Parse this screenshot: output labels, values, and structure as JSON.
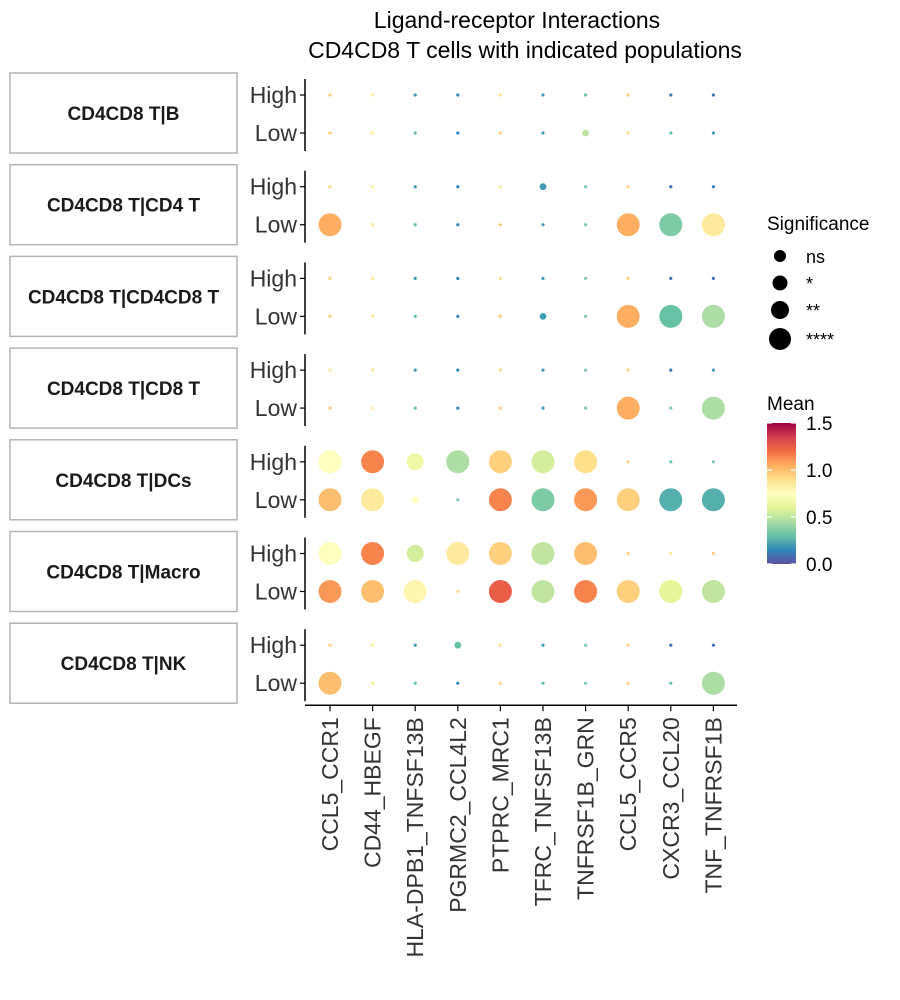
{
  "chart_data": {
    "type": "scatter",
    "title": "Ligand-receptor Interactions",
    "subtitle": "CD4CD8 T cells with indicated populations",
    "xlabel": "",
    "ylabel": "",
    "categories": [
      "CCL5_CCR1",
      "CD44_HBEGF",
      "HLA-DPB1_TNFSF13B",
      "PGRMC2_CCL4L2",
      "PTPRC_MRC1",
      "TFRC_TNFSF13B",
      "TNFRSF1B_GRN",
      "CCL5_CCR5",
      "CXCR3_CCL20",
      "TNF_TNFRSF1B"
    ],
    "row_levels": [
      "High",
      "Low"
    ],
    "color_scale": {
      "name": "Mean",
      "palette": "Spectral",
      "range": [
        0,
        1.5
      ],
      "ticks": [
        "1.5",
        "1.0",
        "0.5",
        "0.0"
      ],
      "stops": [
        "#5E4FA2",
        "#3288BD",
        "#66C2A5",
        "#ABDDA4",
        "#E6F598",
        "#FFFFBF",
        "#FEE08B",
        "#FDAE61",
        "#F46D43",
        "#D53E4F",
        "#9E0142"
      ]
    },
    "size_legend": {
      "name": "Significance",
      "levels": [
        "ns",
        "*",
        "**",
        "****"
      ]
    },
    "grid": false,
    "legend_position": "right",
    "panels": [
      {
        "name": "CD4CD8 T|B",
        "rows": [
          {
            "level": "High",
            "mean": [
              0.95,
              0.85,
              0.2,
              0.15,
              0.9,
              0.2,
              0.3,
              0.95,
              0.1,
              0.1
            ],
            "sig": [
              0,
              0,
              0,
              0,
              0,
              0,
              0,
              0,
              0,
              0
            ]
          },
          {
            "level": "Low",
            "mean": [
              0.95,
              0.85,
              0.3,
              0.15,
              0.95,
              0.2,
              0.5,
              0.9,
              0.3,
              0.2
            ],
            "sig": [
              0,
              0,
              0,
              0,
              0,
              0,
              1,
              0,
              0,
              0
            ]
          }
        ]
      },
      {
        "name": "CD4CD8 T|CD4 T",
        "rows": [
          {
            "level": "High",
            "mean": [
              0.9,
              0.85,
              0.2,
              0.15,
              0.85,
              0.2,
              0.35,
              0.95,
              0.1,
              0.15
            ],
            "sig": [
              0,
              0,
              0,
              0,
              0,
              1,
              0,
              0,
              0,
              0
            ]
          },
          {
            "level": "Low",
            "mean": [
              1.05,
              0.85,
              0.3,
              0.15,
              0.95,
              0.2,
              0.35,
              1.05,
              0.35,
              0.85
            ],
            "sig": [
              3,
              0,
              0,
              0,
              0,
              0,
              0,
              3,
              3,
              3
            ]
          }
        ]
      },
      {
        "name": "CD4CD8 T|CD4CD8 T",
        "rows": [
          {
            "level": "High",
            "mean": [
              0.95,
              0.85,
              0.2,
              0.15,
              0.9,
              0.2,
              0.35,
              0.95,
              0.1,
              0.1
            ],
            "sig": [
              0,
              0,
              0,
              0,
              0,
              0,
              0,
              0,
              0,
              0
            ]
          },
          {
            "level": "Low",
            "mean": [
              0.95,
              0.85,
              0.3,
              0.15,
              0.95,
              0.2,
              0.35,
              1.05,
              0.3,
              0.45
            ],
            "sig": [
              0,
              0,
              0,
              0,
              0,
              1,
              0,
              3,
              3,
              3
            ]
          }
        ]
      },
      {
        "name": "CD4CD8 T|CD8 T",
        "rows": [
          {
            "level": "High",
            "mean": [
              0.85,
              0.85,
              0.2,
              0.15,
              0.9,
              0.2,
              0.35,
              0.95,
              0.1,
              0.2
            ],
            "sig": [
              0,
              0,
              0,
              0,
              0,
              0,
              0,
              0,
              0,
              0
            ]
          },
          {
            "level": "Low",
            "mean": [
              0.95,
              0.85,
              0.3,
              0.15,
              0.95,
              0.2,
              0.35,
              1.05,
              0.35,
              0.45
            ],
            "sig": [
              0,
              0,
              0,
              0,
              0,
              0,
              0,
              3,
              0,
              3
            ]
          }
        ]
      },
      {
        "name": "CD4CD8 T|DCs",
        "rows": [
          {
            "level": "High",
            "mean": [
              0.75,
              1.15,
              0.65,
              0.45,
              0.95,
              0.55,
              0.9,
              0.95,
              0.3,
              0.35
            ],
            "sig": [
              3,
              3,
              2,
              3,
              3,
              3,
              3,
              0,
              0,
              0
            ]
          },
          {
            "level": "Low",
            "mean": [
              1.0,
              0.85,
              0.75,
              0.35,
              1.15,
              0.35,
              1.1,
              0.95,
              0.25,
              0.25
            ],
            "sig": [
              3,
              3,
              1,
              0,
              3,
              3,
              3,
              3,
              3,
              3
            ]
          }
        ]
      },
      {
        "name": "CD4CD8 T|Macro",
        "rows": [
          {
            "level": "High",
            "mean": [
              0.75,
              1.15,
              0.55,
              0.85,
              0.95,
              0.5,
              1.0,
              0.95,
              0.85,
              0.95
            ],
            "sig": [
              3,
              3,
              2,
              3,
              3,
              3,
              3,
              0,
              0,
              0
            ]
          },
          {
            "level": "Low",
            "mean": [
              1.1,
              1.0,
              0.8,
              0.9,
              1.25,
              0.5,
              1.15,
              0.95,
              0.6,
              0.5
            ],
            "sig": [
              3,
              3,
              3,
              0,
              3,
              3,
              3,
              3,
              3,
              3
            ]
          }
        ]
      },
      {
        "name": "CD4CD8 T|NK",
        "rows": [
          {
            "level": "High",
            "mean": [
              0.95,
              0.85,
              0.2,
              0.3,
              0.9,
              0.2,
              0.35,
              0.95,
              0.1,
              0.1
            ],
            "sig": [
              0,
              0,
              0,
              1,
              0,
              0,
              0,
              0,
              0,
              0
            ]
          },
          {
            "level": "Low",
            "mean": [
              1.0,
              0.85,
              0.3,
              0.15,
              0.95,
              0.3,
              0.35,
              0.95,
              0.3,
              0.45
            ],
            "sig": [
              3,
              0,
              0,
              0,
              0,
              0,
              0,
              0,
              0,
              3
            ]
          }
        ]
      }
    ]
  }
}
